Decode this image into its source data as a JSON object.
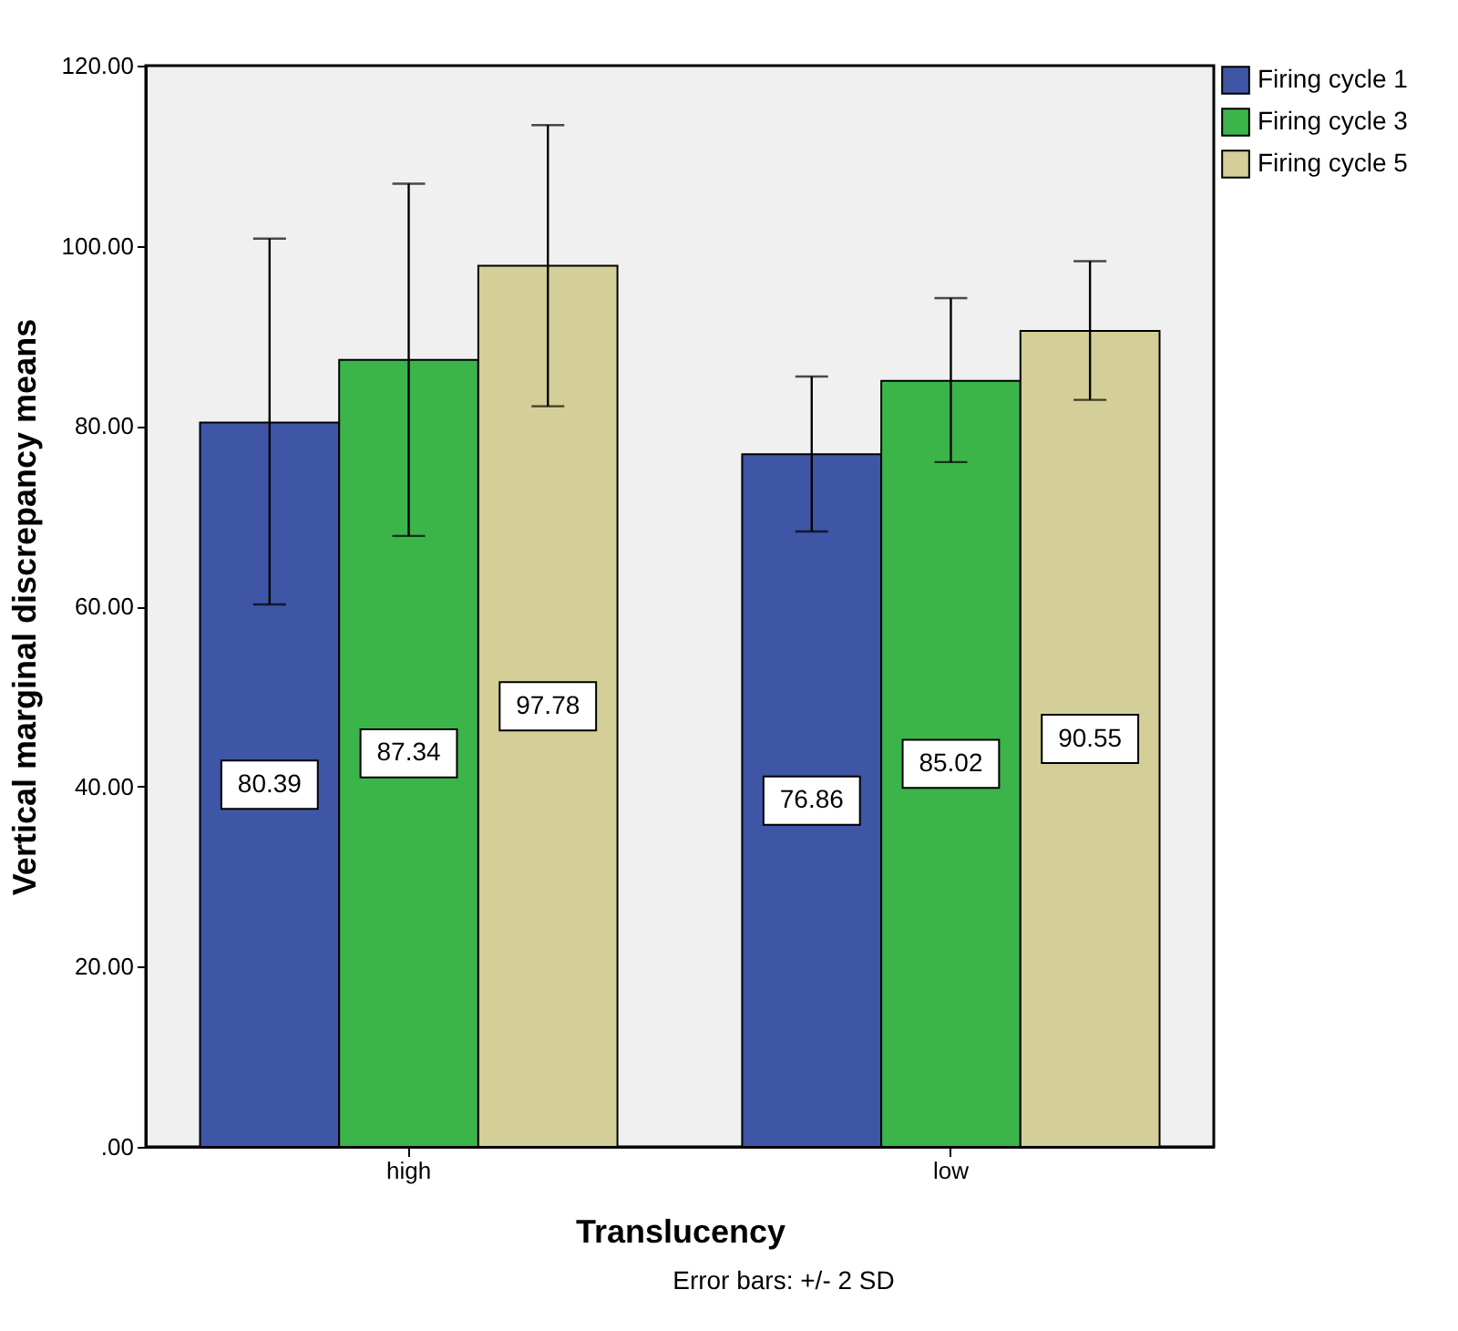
{
  "chart_data": {
    "type": "bar",
    "xlabel": "Translucency",
    "ylabel": "Vertical marginal discrepancy means",
    "categories": [
      "high",
      "low"
    ],
    "series": [
      {
        "name": "Firing cycle 1",
        "color": "#3f55a6",
        "values": [
          80.39,
          76.86
        ],
        "errors": [
          [
            60.2,
            100.8
          ],
          [
            68.3,
            85.5
          ]
        ]
      },
      {
        "name": "Firing cycle 3",
        "color": "#3bb54a",
        "values": [
          87.34,
          85.02
        ],
        "errors": [
          [
            67.8,
            106.9
          ],
          [
            76.0,
            94.2
          ]
        ]
      },
      {
        "name": "Firing cycle 5",
        "color": "#d4cf98",
        "values": [
          97.78,
          90.55
        ],
        "errors": [
          [
            82.2,
            113.4
          ],
          [
            82.9,
            98.3
          ]
        ]
      }
    ],
    "ylim": [
      0,
      120
    ],
    "yticks": [
      {
        "value": 0,
        "label": ".00"
      },
      {
        "value": 20,
        "label": "20.00"
      },
      {
        "value": 40,
        "label": "40.00"
      },
      {
        "value": 60,
        "label": "60.00"
      },
      {
        "value": 80,
        "label": "80.00"
      },
      {
        "value": 100,
        "label": "100.00"
      },
      {
        "value": 120,
        "label": "120.00"
      }
    ],
    "data_labels": true,
    "grid": false,
    "legend": "top right",
    "annotations": [
      "Error bars: +/- 2 SD"
    ]
  }
}
